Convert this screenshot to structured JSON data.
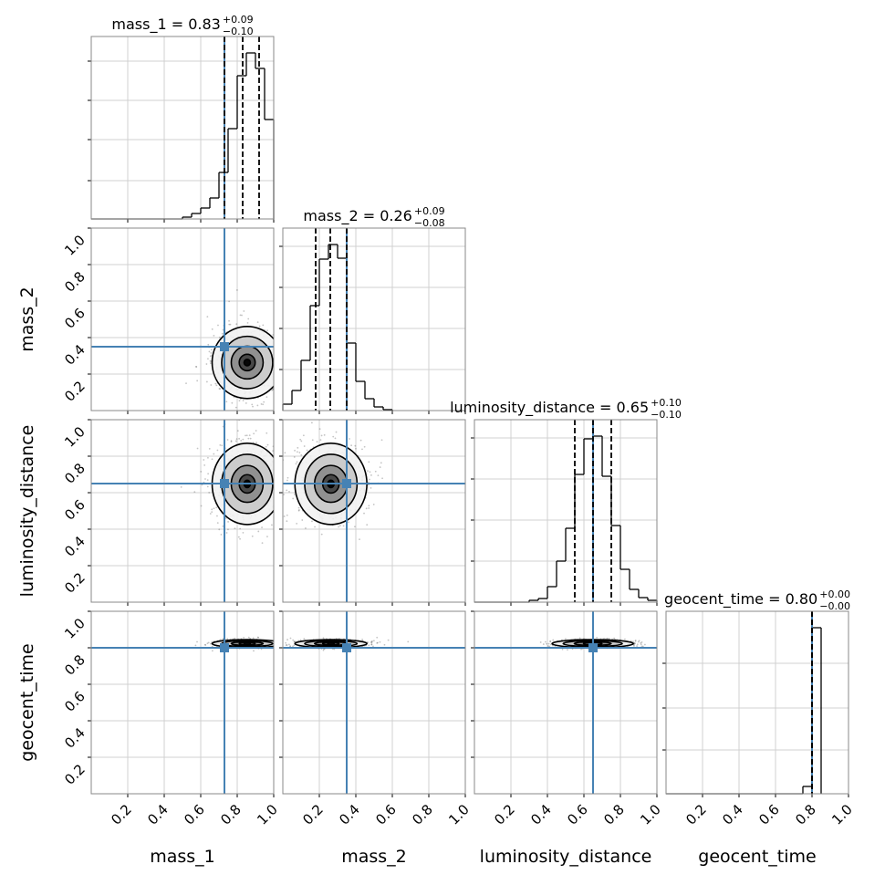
{
  "chart_data": {
    "type": "corner",
    "xlim": [
      0,
      1
    ],
    "ylim": [
      0,
      1
    ],
    "xticks": [
      0.2,
      0.4,
      0.6,
      0.8,
      {
        "value": 1,
        "label": "1.0"
      }
    ],
    "yticks": [
      0.2,
      0.4,
      0.6,
      0.8,
      {
        "value": 1,
        "label": "1.0"
      }
    ],
    "grid": true,
    "truth_color": "#4682b4",
    "parameters": [
      {
        "name": "mass_1",
        "title": "mass_1 = 0.83",
        "title_plus": "+0.09",
        "title_minus": "−0.10",
        "bins": [
          0.5,
          0.55,
          0.6,
          0.65,
          0.7,
          0.75,
          0.8,
          0.85,
          0.9,
          0.95,
          1.0
        ],
        "counts": [
          2,
          6,
          12,
          23,
          51,
          99,
          157,
          182,
          165,
          109
        ],
        "quantiles": [
          0.73,
          0.83,
          0.92
        ],
        "truth": 0.73,
        "hist_ylim": [
          0,
          200
        ],
        "hist_yticks": [
          42,
          87,
          130,
          173
        ]
      },
      {
        "name": "mass_2",
        "title": "mass_2 = 0.26",
        "title_plus": "+0.09",
        "title_minus": "−0.08",
        "bins": [
          0,
          0.05,
          0.1,
          0.15,
          0.2,
          0.25,
          0.3,
          0.35,
          0.4,
          0.45,
          0.5,
          0.55,
          0.6
        ],
        "counts": [
          7,
          22,
          55,
          115,
          166,
          182,
          167,
          74,
          32,
          13,
          4,
          1
        ],
        "quantiles": [
          0.18,
          0.26,
          0.35
        ],
        "truth": 0.35,
        "hist_ylim": [
          0,
          200
        ],
        "hist_yticks": [
          45,
          90,
          135,
          180
        ]
      },
      {
        "name": "luminosity_distance",
        "title": "luminosity_distance = 0.65",
        "title_plus": "+0.10",
        "title_minus": "−0.10",
        "bins": [
          0.3,
          0.35,
          0.4,
          0.45,
          0.5,
          0.55,
          0.6,
          0.65,
          0.7,
          0.75,
          0.8,
          0.85,
          0.9,
          0.95,
          1.0
        ],
        "counts": [
          2,
          4,
          17,
          45,
          81,
          140,
          179,
          182,
          138,
          84,
          36,
          14,
          5,
          2
        ],
        "quantiles": [
          0.55,
          0.65,
          0.75
        ],
        "truth": 0.65,
        "hist_ylim": [
          0,
          200
        ],
        "hist_yticks": [
          45,
          90,
          135,
          180
        ]
      },
      {
        "name": "geocent_time",
        "title": "geocent_time = 0.80",
        "title_plus": "+0.00",
        "title_minus": "−0.00",
        "bins": [
          0.75,
          0.8,
          0.85
        ],
        "counts": [
          8,
          182
        ],
        "quantiles": [
          0.8,
          0.8,
          0.8
        ],
        "truth": 0.8,
        "hist_ylim": [
          0,
          200
        ],
        "hist_yticks": [
          48,
          94,
          143
        ]
      }
    ]
  }
}
